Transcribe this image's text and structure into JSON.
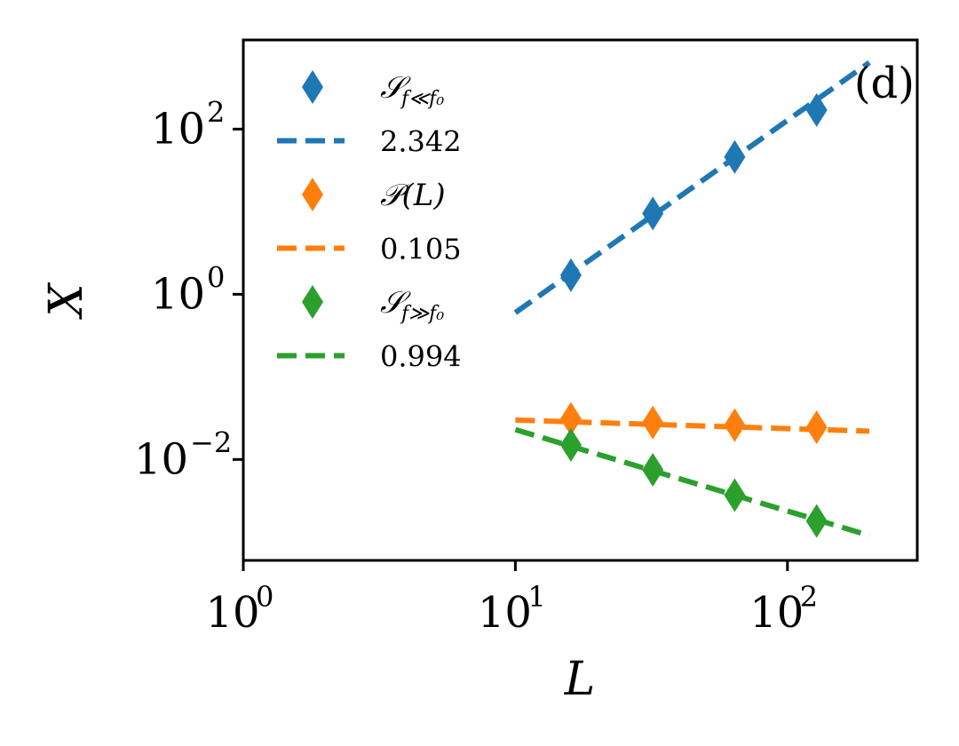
{
  "chart_data": {
    "type": "scatter",
    "scale": {
      "x": "log",
      "y": "log"
    },
    "xlabel": "L",
    "ylabel": "X",
    "xlim": [
      1,
      300
    ],
    "ylim": [
      0.0006,
      1200
    ],
    "panel_label": "(d)",
    "grid": false,
    "legend_position": "upper-left",
    "x_ticks": [
      {
        "value": 1,
        "base": "10",
        "exp": "0"
      },
      {
        "value": 10,
        "base": "10",
        "exp": "1"
      },
      {
        "value": 100,
        "base": "10",
        "exp": "2"
      }
    ],
    "y_ticks": [
      {
        "value": 0.01,
        "base": "10",
        "exp": "−2"
      },
      {
        "value": 1,
        "base": "10",
        "exp": "0"
      },
      {
        "value": 100,
        "base": "10",
        "exp": "2"
      }
    ],
    "series": [
      {
        "name": "S_{f<<f0}",
        "label_main": "𝒮",
        "label_sub": "f≪f₀",
        "color": "#1f77b4",
        "marker": "diamond",
        "x": [
          16,
          32,
          64,
          128
        ],
        "y": [
          1.7,
          9.5,
          46,
          170
        ],
        "fit": {
          "label": "2.342",
          "x_range": [
            10,
            200
          ],
          "y_range": [
            0.6,
            640
          ]
        }
      },
      {
        "name": "P(L)",
        "label_main": "𝒫(L)",
        "label_sub": "",
        "color": "#ff7f0e",
        "marker": "diamond",
        "x": [
          16,
          32,
          64,
          128
        ],
        "y": [
          0.031,
          0.028,
          0.026,
          0.0245
        ],
        "fit": {
          "label": "0.105",
          "x_range": [
            10,
            200
          ],
          "y_range": [
            0.03,
            0.022
          ]
        }
      },
      {
        "name": "S_{f>>f0}",
        "label_main": "𝒮",
        "label_sub": "f≫f₀",
        "color": "#2ca02c",
        "marker": "diamond",
        "x": [
          16,
          32,
          64,
          128
        ],
        "y": [
          0.015,
          0.0075,
          0.0037,
          0.0018
        ],
        "fit": {
          "label": "0.994",
          "x_range": [
            10,
            200
          ],
          "y_range": [
            0.023,
            0.0012
          ]
        }
      }
    ]
  }
}
